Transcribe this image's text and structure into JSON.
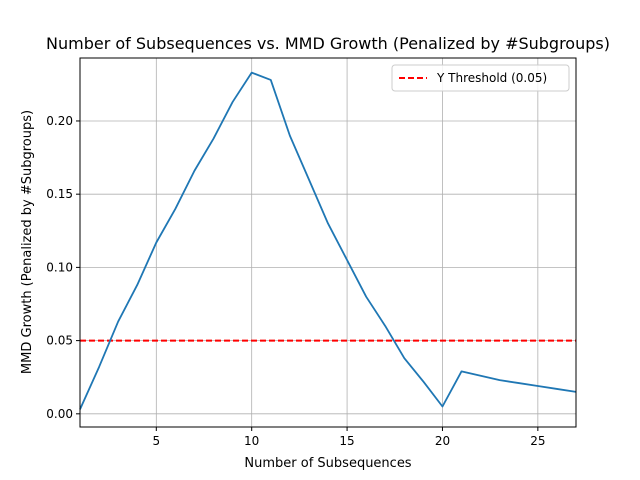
{
  "chart_data": {
    "type": "line",
    "title": "Number of Subsequences vs. MMD Growth (Penalized by #Subgroups)",
    "xlabel": "Number of Subsequences",
    "ylabel": "MMD Growth (Penalized by #Subgroups)",
    "xlim": [
      1,
      27
    ],
    "ylim": [
      -0.009,
      0.243
    ],
    "x_ticks": [
      5,
      10,
      15,
      20,
      25
    ],
    "y_ticks": [
      0.0,
      0.05,
      0.1,
      0.15,
      0.2
    ],
    "x_tick_labels": [
      "5",
      "10",
      "15",
      "20",
      "25"
    ],
    "y_tick_labels": [
      "0.00",
      "0.05",
      "0.10",
      "0.15",
      "0.20"
    ],
    "grid": true,
    "legend_position": "top-right",
    "series": [
      {
        "color": "#1f77b4",
        "x": [
          1,
          2,
          3,
          4,
          5,
          6,
          7,
          8,
          9,
          10,
          11,
          12,
          13,
          14,
          15,
          16,
          17,
          18,
          19,
          20,
          21,
          22,
          23,
          24,
          25,
          26,
          27
        ],
        "values": [
          0.003,
          0.032,
          0.063,
          0.088,
          0.117,
          0.14,
          0.166,
          0.188,
          0.213,
          0.233,
          0.228,
          0.19,
          0.16,
          0.13,
          0.105,
          0.08,
          0.06,
          0.038,
          0.022,
          0.005,
          0.029,
          0.026,
          0.023,
          0.021,
          0.019,
          0.017,
          0.015
        ]
      }
    ],
    "threshold": {
      "name": "Y Threshold (0.05)",
      "value": 0.05,
      "color": "#ff0000",
      "style": "dashed"
    }
  }
}
